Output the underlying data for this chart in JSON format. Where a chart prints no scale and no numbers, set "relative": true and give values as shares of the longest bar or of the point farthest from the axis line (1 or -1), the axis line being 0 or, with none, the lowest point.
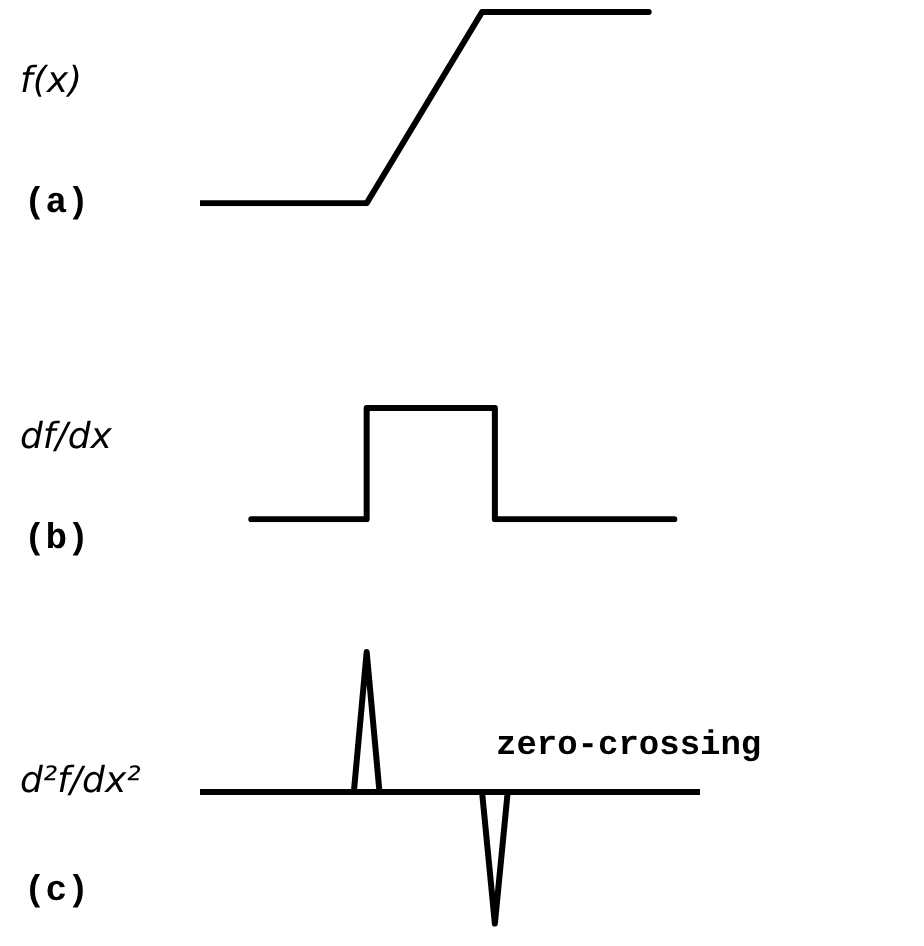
{
  "chart_data": [
    {
      "type": "line",
      "title": "(a)",
      "ylabel": "f(x)",
      "relative": true,
      "grid": false,
      "legend": false,
      "marker": "none",
      "line_style": "solid",
      "categories": [
        null,
        null,
        null,
        null,
        null,
        null,
        null,
        null,
        null,
        null,
        null,
        null,
        null,
        null,
        null,
        null,
        null,
        null,
        null,
        null,
        null,
        null,
        null,
        null,
        null,
        null,
        null,
        null,
        null,
        null,
        null,
        null,
        null,
        null,
        null,
        null,
        null,
        null,
        null,
        null
      ],
      "series": [
        {
          "color": "#000000",
          "values": [
            0,
            null,
            null,
            null,
            null,
            null,
            null,
            null,
            null,
            null,
            null,
            null,
            null,
            0,
            null,
            null,
            null,
            null,
            null,
            null,
            null,
            null,
            1,
            null,
            null,
            null,
            null,
            null,
            null,
            null,
            null,
            null,
            null,
            null,
            null,
            1,
            null,
            null,
            null,
            null
          ]
        }
      ]
    },
    {
      "type": "step",
      "title": "(b)",
      "ylabel": "df/dx",
      "relative": true,
      "grid": false,
      "legend": false,
      "marker": "none",
      "line_style": "solid",
      "categories": [
        null,
        null,
        null,
        null,
        null,
        null,
        null,
        null,
        null,
        null,
        null,
        null,
        null,
        null,
        null,
        null,
        null,
        null,
        null,
        null,
        null,
        null,
        null,
        null,
        null,
        null,
        null,
        null,
        null,
        null,
        null,
        null,
        null,
        null,
        null,
        null,
        null,
        null,
        null,
        null
      ],
      "series": [
        {
          "color": "#000000",
          "values": [
            null,
            null,
            null,
            null,
            0,
            null,
            null,
            null,
            null,
            null,
            null,
            null,
            null,
            1,
            null,
            null,
            null,
            null,
            null,
            null,
            null,
            null,
            null,
            0,
            null,
            null,
            null,
            null,
            null,
            null,
            null,
            null,
            null,
            null,
            null,
            null,
            null,
            0,
            null,
            null
          ]
        }
      ]
    },
    {
      "type": "line",
      "title": "(c)",
      "ylabel": "d²f/dx²",
      "relative": true,
      "grid": false,
      "legend": false,
      "marker": "none",
      "line_style": "solid",
      "annotations": [
        "zero-crossing"
      ],
      "categories": [
        null,
        null,
        null,
        null,
        null,
        null,
        null,
        null,
        null,
        null,
        null,
        null,
        null,
        null,
        null,
        null,
        null,
        null,
        null,
        null,
        null,
        null,
        null,
        null,
        null,
        null,
        null,
        null,
        null,
        null,
        null,
        null,
        null,
        null,
        null,
        null,
        null,
        null,
        null,
        null
      ],
      "series": [
        {
          "color": "#000000",
          "values": [
            null,
            null,
            null,
            0,
            null,
            null,
            null,
            null,
            null,
            null,
            null,
            null,
            0,
            1,
            0,
            null,
            null,
            null,
            null,
            null,
            null,
            null,
            0,
            -0.94,
            0,
            null,
            null,
            null,
            null,
            null,
            null,
            null,
            null,
            null,
            null,
            null,
            null,
            null,
            null,
            0
          ]
        }
      ]
    }
  ]
}
